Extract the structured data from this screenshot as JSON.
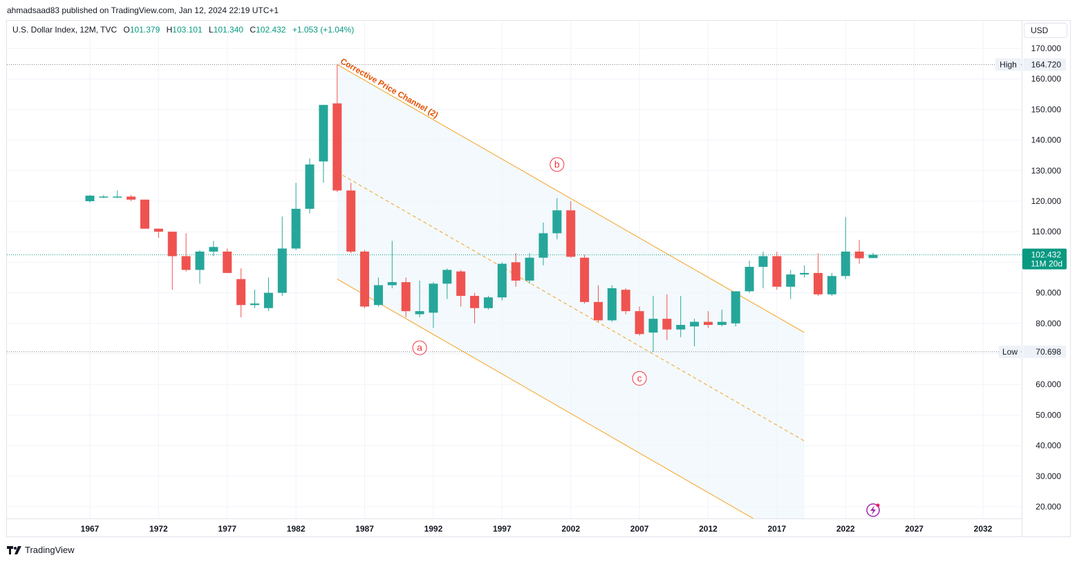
{
  "header": {
    "published": "ahmadsaad83 published on TradingView.com, Jan 12, 2024 22:19 UTC+1"
  },
  "legend": {
    "symbol": "U.S. Dollar Index, 12M, TVC",
    "open_label": "O",
    "open": "101.379",
    "high_label": "H",
    "high": "103.101",
    "low_label": "L",
    "low": "101.340",
    "close_label": "C",
    "close": "102.432",
    "change": "+1.053 (+1.04%)"
  },
  "currency": "USD",
  "footer": {
    "brand": "TradingView"
  },
  "colors": {
    "up": "#26a69a",
    "down": "#ef5350",
    "channel": "#f7a01f",
    "channel_text": "#e65100",
    "fill": "#eef7fc",
    "wave_label": "#f23645",
    "price_line": "#089981"
  },
  "chart_data": {
    "type": "candlestick",
    "timeframe": "12M",
    "ylim": [
      17,
      175
    ],
    "y_ticks": [
      "170.000",
      "160.000",
      "150.000",
      "140.000",
      "130.000",
      "120.000",
      "110.000",
      "100.000",
      "90.000",
      "80.000",
      "70.000",
      "60.000",
      "50.000",
      "40.000",
      "30.000",
      "20.000"
    ],
    "y_tick_values": [
      170,
      160,
      150,
      140,
      130,
      120,
      110,
      100,
      90,
      80,
      70,
      60,
      50,
      40,
      30,
      20
    ],
    "x_ticks": [
      "1967",
      "1972",
      "1977",
      "1982",
      "1987",
      "1992",
      "1997",
      "2002",
      "2007",
      "2012",
      "2017",
      "2022",
      "2027",
      "2032"
    ],
    "x_tick_values": [
      1967,
      1972,
      1977,
      1982,
      1987,
      1992,
      1997,
      2002,
      2007,
      2012,
      2017,
      2022,
      2027,
      2032
    ],
    "xlim": [
      1961.1,
      2035.0
    ],
    "candles": [
      {
        "x": 1967,
        "o": 120,
        "h": 122,
        "l": 119.5,
        "c": 121.8
      },
      {
        "x": 1968,
        "o": 121.5,
        "h": 122,
        "l": 121,
        "c": 121.5
      },
      {
        "x": 1969,
        "o": 121.5,
        "h": 123.5,
        "l": 121,
        "c": 121.5
      },
      {
        "x": 1970,
        "o": 121.5,
        "h": 122,
        "l": 120,
        "c": 120.5
      },
      {
        "x": 1971,
        "o": 120.5,
        "h": 120.5,
        "l": 111,
        "c": 111
      },
      {
        "x": 1972,
        "o": 111,
        "h": 111,
        "l": 108,
        "c": 110
      },
      {
        "x": 1973,
        "o": 110,
        "h": 110,
        "l": 91,
        "c": 102
      },
      {
        "x": 1974,
        "o": 102,
        "h": 109.5,
        "l": 97,
        "c": 97.5
      },
      {
        "x": 1975,
        "o": 97.5,
        "h": 104,
        "l": 93,
        "c": 103.5
      },
      {
        "x": 1976,
        "o": 103.5,
        "h": 107,
        "l": 102,
        "c": 105
      },
      {
        "x": 1977,
        "o": 103.5,
        "h": 104.5,
        "l": 96.5,
        "c": 96.5
      },
      {
        "x": 1978,
        "o": 94.5,
        "h": 98,
        "l": 82,
        "c": 86
      },
      {
        "x": 1979,
        "o": 86,
        "h": 91,
        "l": 85,
        "c": 86.5
      },
      {
        "x": 1980,
        "o": 85,
        "h": 95,
        "l": 84,
        "c": 90
      },
      {
        "x": 1981,
        "o": 90,
        "h": 115,
        "l": 89,
        "c": 104.5
      },
      {
        "x": 1982,
        "o": 104.5,
        "h": 126,
        "l": 104,
        "c": 117.5
      },
      {
        "x": 1983,
        "o": 117.5,
        "h": 134,
        "l": 116,
        "c": 132
      },
      {
        "x": 1984,
        "o": 133,
        "h": 151.5,
        "l": 126,
        "c": 151.5
      },
      {
        "x": 1985,
        "o": 152,
        "h": 164.72,
        "l": 123,
        "c": 123.5
      },
      {
        "x": 1986,
        "o": 123.5,
        "h": 126,
        "l": 103,
        "c": 103.5
      },
      {
        "x": 1987,
        "o": 103.5,
        "h": 104,
        "l": 85,
        "c": 85.5
      },
      {
        "x": 1988,
        "o": 86,
        "h": 95,
        "l": 85.5,
        "c": 92.5
      },
      {
        "x": 1989,
        "o": 92.5,
        "h": 107,
        "l": 91.5,
        "c": 93.5
      },
      {
        "x": 1990,
        "o": 93.5,
        "h": 95,
        "l": 82,
        "c": 84
      },
      {
        "x": 1991,
        "o": 83,
        "h": 94,
        "l": 82,
        "c": 84
      },
      {
        "x": 1992,
        "o": 83.5,
        "h": 93.5,
        "l": 78.5,
        "c": 93
      },
      {
        "x": 1993,
        "o": 93,
        "h": 98,
        "l": 88,
        "c": 97.5
      },
      {
        "x": 1994,
        "o": 97,
        "h": 97.5,
        "l": 85.5,
        "c": 89
      },
      {
        "x": 1995,
        "o": 89,
        "h": 90,
        "l": 80,
        "c": 85
      },
      {
        "x": 1996,
        "o": 85,
        "h": 89,
        "l": 84.5,
        "c": 88.5
      },
      {
        "x": 1997,
        "o": 88.5,
        "h": 100,
        "l": 87.5,
        "c": 99.5
      },
      {
        "x": 1998,
        "o": 100,
        "h": 103,
        "l": 92,
        "c": 94
      },
      {
        "x": 1999,
        "o": 94,
        "h": 103,
        "l": 93,
        "c": 101.5
      },
      {
        "x": 2000,
        "o": 101.5,
        "h": 113,
        "l": 99,
        "c": 109.5
      },
      {
        "x": 2001,
        "o": 109.5,
        "h": 121,
        "l": 107.5,
        "c": 117
      },
      {
        "x": 2002,
        "o": 117,
        "h": 120,
        "l": 101.5,
        "c": 101.8
      },
      {
        "x": 2003,
        "o": 101.5,
        "h": 102.5,
        "l": 86.5,
        "c": 87
      },
      {
        "x": 2004,
        "o": 87,
        "h": 92.5,
        "l": 80.5,
        "c": 81
      },
      {
        "x": 2005,
        "o": 81,
        "h": 92.5,
        "l": 80.5,
        "c": 91.5
      },
      {
        "x": 2006,
        "o": 91,
        "h": 91.5,
        "l": 83,
        "c": 84
      },
      {
        "x": 2007,
        "o": 84,
        "h": 85.5,
        "l": 76,
        "c": 76.5
      },
      {
        "x": 2008,
        "o": 77,
        "h": 89,
        "l": 70.698,
        "c": 81.5
      },
      {
        "x": 2009,
        "o": 81.5,
        "h": 89.5,
        "l": 74.5,
        "c": 78
      },
      {
        "x": 2010,
        "o": 78,
        "h": 89,
        "l": 75.5,
        "c": 79.5
      },
      {
        "x": 2011,
        "o": 79,
        "h": 81.5,
        "l": 72.5,
        "c": 80.5
      },
      {
        "x": 2012,
        "o": 80.5,
        "h": 84,
        "l": 78.5,
        "c": 79.5
      },
      {
        "x": 2013,
        "o": 79.5,
        "h": 84.5,
        "l": 79,
        "c": 80.5
      },
      {
        "x": 2014,
        "o": 80,
        "h": 90.5,
        "l": 79,
        "c": 90.5
      },
      {
        "x": 2015,
        "o": 90.5,
        "h": 100.5,
        "l": 90,
        "c": 98.5
      },
      {
        "x": 2016,
        "o": 98.5,
        "h": 103.5,
        "l": 91.5,
        "c": 102
      },
      {
        "x": 2017,
        "o": 102,
        "h": 103.5,
        "l": 91,
        "c": 92
      },
      {
        "x": 2018,
        "o": 92,
        "h": 97.5,
        "l": 88,
        "c": 96
      },
      {
        "x": 2019,
        "o": 96,
        "h": 99,
        "l": 95,
        "c": 96.5
      },
      {
        "x": 2020,
        "o": 96.5,
        "h": 103,
        "l": 89,
        "c": 89.5
      },
      {
        "x": 2021,
        "o": 89.5,
        "h": 96.5,
        "l": 89,
        "c": 95.5
      },
      {
        "x": 2022,
        "o": 95.5,
        "h": 114.8,
        "l": 94.5,
        "c": 103.5
      },
      {
        "x": 2023,
        "o": 103.5,
        "h": 107.3,
        "l": 99.5,
        "c": 101.3
      },
      {
        "x": 2024,
        "o": 101.379,
        "h": 103.101,
        "l": 101.34,
        "c": 102.432
      }
    ],
    "high": {
      "label": "High",
      "value": "164.720",
      "y": 164.72
    },
    "low": {
      "label": "Low",
      "value": "70.698",
      "y": 70.698
    },
    "current_price": {
      "value": "102.432",
      "y": 102.432,
      "countdown": "11M 20d"
    },
    "channel": {
      "label": "Corrective Price Channel (2)",
      "upper": [
        [
          1985,
          164.72
        ],
        [
          2019,
          77
        ]
      ],
      "middle": [
        [
          1985,
          129.5
        ],
        [
          2019,
          41.5
        ]
      ],
      "lower": [
        [
          1985,
          94.5
        ],
        [
          2019,
          6.5
        ]
      ]
    },
    "wave_labels": [
      {
        "text": "a",
        "x": 1991,
        "y": 72
      },
      {
        "text": "b",
        "x": 2001,
        "y": 132
      },
      {
        "text": "c",
        "x": 2007,
        "y": 62
      }
    ]
  }
}
